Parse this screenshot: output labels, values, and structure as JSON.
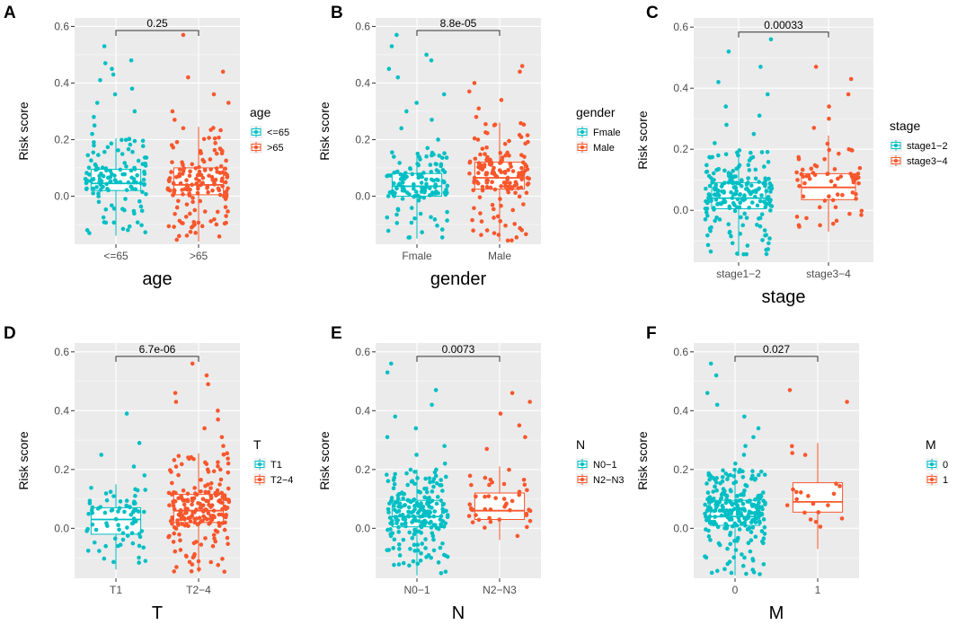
{
  "figure": {
    "colors": {
      "group1": "#00bfc4",
      "group2": "#f8562c",
      "panel_bg": "#ebebeb",
      "grid": "#ffffff"
    }
  },
  "chart_data": [
    {
      "panel": "A",
      "type": "box-jitter",
      "xlabel": "age",
      "ylabel": "Risk score",
      "ylim": [
        -0.17,
        0.63
      ],
      "yticks": [
        0.0,
        0.2,
        0.4,
        0.6
      ],
      "ytick_labels": [
        "0.0",
        "0.2",
        "0.4",
        "0.6"
      ],
      "categories": [
        "<=65",
        ">65"
      ],
      "legend": {
        "title": "age",
        "labels": [
          "<=65",
          ">65"
        ]
      },
      "p_value": "0.25",
      "groups": [
        {
          "name": "<=65",
          "n": 140,
          "min": -0.14,
          "q1": 0.02,
          "median": 0.045,
          "q3": 0.095,
          "max": 0.205,
          "outliers": [
            0.22,
            0.25,
            0.28,
            0.3,
            0.33,
            0.36,
            0.38,
            0.41,
            0.43,
            0.45,
            0.47,
            0.48,
            0.53
          ]
        },
        {
          "name": ">65",
          "n": 160,
          "min": -0.16,
          "q1": 0.005,
          "median": 0.04,
          "q3": 0.1,
          "max": 0.245,
          "outliers": [
            0.27,
            0.3,
            0.33,
            0.36,
            0.42,
            0.44,
            0.57
          ]
        }
      ]
    },
    {
      "panel": "B",
      "type": "box-jitter",
      "xlabel": "gender",
      "ylabel": "Risk score",
      "ylim": [
        -0.17,
        0.63
      ],
      "yticks": [
        0.0,
        0.2,
        0.4,
        0.6
      ],
      "ytick_labels": [
        "0.0",
        "0.2",
        "0.4",
        "0.6"
      ],
      "categories": [
        "Fmale",
        "Male"
      ],
      "legend": {
        "title": "gender",
        "labels": [
          "Fmale",
          "Male"
        ]
      },
      "p_value": "8.8e-05",
      "groups": [
        {
          "name": "Fmale",
          "n": 140,
          "min": -0.15,
          "q1": 0.0,
          "median": 0.035,
          "q3": 0.08,
          "max": 0.155,
          "outliers": [
            0.17,
            0.2,
            0.24,
            0.27,
            0.3,
            0.33,
            0.36,
            0.42,
            0.45,
            0.48,
            0.5,
            0.53,
            0.57
          ]
        },
        {
          "name": "Male",
          "n": 160,
          "min": -0.16,
          "q1": 0.025,
          "median": 0.065,
          "q3": 0.12,
          "max": 0.26,
          "outliers": [
            0.28,
            0.31,
            0.34,
            0.37,
            0.4,
            0.44,
            0.46
          ]
        }
      ]
    },
    {
      "panel": "C",
      "type": "box-jitter",
      "xlabel": "stage",
      "ylabel": "Risk score",
      "ylim": [
        -0.17,
        0.63
      ],
      "yticks": [
        0.0,
        0.2,
        0.4,
        0.6
      ],
      "ytick_labels": [
        "0.0",
        "0.2",
        "0.4",
        "0.6"
      ],
      "categories": [
        "stage1−2",
        "stage3−4"
      ],
      "legend": {
        "title": "stage",
        "labels": [
          "stage1−2",
          "stage3−4"
        ]
      },
      "p_value": "0.00033",
      "groups": [
        {
          "name": "stage1−2",
          "n": 220,
          "min": -0.15,
          "q1": 0.005,
          "median": 0.04,
          "q3": 0.09,
          "max": 0.2,
          "outliers": [
            0.22,
            0.25,
            0.28,
            0.31,
            0.34,
            0.38,
            0.42,
            0.47,
            0.52,
            0.56
          ]
        },
        {
          "name": "stage3−4",
          "n": 70,
          "min": -0.07,
          "q1": 0.035,
          "median": 0.075,
          "q3": 0.12,
          "max": 0.245,
          "outliers": [
            0.27,
            0.3,
            0.34,
            0.38,
            0.43,
            0.47
          ]
        }
      ]
    },
    {
      "panel": "D",
      "type": "box-jitter",
      "xlabel": "T",
      "ylabel": "Risk score",
      "ylim": [
        -0.17,
        0.63
      ],
      "yticks": [
        0.0,
        0.2,
        0.4,
        0.6
      ],
      "ytick_labels": [
        "0.0",
        "0.2",
        "0.4",
        "0.6"
      ],
      "categories": [
        "T1",
        "T2−4"
      ],
      "legend": {
        "title": "T",
        "labels": [
          "T1",
          "T2−4"
        ]
      },
      "p_value": "6.7e-06",
      "groups": [
        {
          "name": "T1",
          "n": 80,
          "min": -0.14,
          "q1": -0.02,
          "median": 0.03,
          "q3": 0.07,
          "max": 0.15,
          "outliers": [
            0.18,
            0.21,
            0.25,
            0.29,
            0.39
          ]
        },
        {
          "name": "T2−4",
          "n": 220,
          "min": -0.15,
          "q1": 0.02,
          "median": 0.06,
          "q3": 0.115,
          "max": 0.255,
          "outliers": [
            0.28,
            0.31,
            0.34,
            0.37,
            0.4,
            0.43,
            0.46,
            0.49,
            0.52,
            0.56
          ]
        }
      ]
    },
    {
      "panel": "E",
      "type": "box-jitter",
      "xlabel": "N",
      "ylabel": "Risk score",
      "ylim": [
        -0.17,
        0.63
      ],
      "yticks": [
        0.0,
        0.2,
        0.4,
        0.6
      ],
      "ytick_labels": [
        "0.0",
        "0.2",
        "0.4",
        "0.6"
      ],
      "categories": [
        "N0−1",
        "N2−N3"
      ],
      "legend": {
        "title": "N",
        "labels": [
          "N0−1",
          "N2−N3"
        ]
      },
      "p_value": "0.0073",
      "groups": [
        {
          "name": "N0−1",
          "n": 230,
          "min": -0.16,
          "q1": 0.005,
          "median": 0.04,
          "q3": 0.095,
          "max": 0.2,
          "outliers": [
            0.22,
            0.25,
            0.28,
            0.31,
            0.34,
            0.38,
            0.42,
            0.47,
            0.53,
            0.56
          ]
        },
        {
          "name": "N2−N3",
          "n": 50,
          "min": -0.04,
          "q1": 0.03,
          "median": 0.06,
          "q3": 0.12,
          "max": 0.21,
          "outliers": [
            0.27,
            0.31,
            0.35,
            0.39,
            0.43,
            0.46
          ]
        }
      ]
    },
    {
      "panel": "F",
      "type": "box-jitter",
      "xlabel": "M",
      "ylabel": "Risk score",
      "ylim": [
        -0.17,
        0.63
      ],
      "yticks": [
        0.0,
        0.2,
        0.4,
        0.6
      ],
      "ytick_labels": [
        "0.0",
        "0.2",
        "0.4",
        "0.6"
      ],
      "categories": [
        "0",
        "1"
      ],
      "legend": {
        "title": "M",
        "labels": [
          "0",
          "1"
        ]
      },
      "p_value": "0.027",
      "groups": [
        {
          "name": "0",
          "n": 260,
          "min": -0.16,
          "q1": 0.01,
          "median": 0.04,
          "q3": 0.095,
          "max": 0.2,
          "outliers": [
            0.22,
            0.25,
            0.28,
            0.31,
            0.34,
            0.38,
            0.42,
            0.46,
            0.52,
            0.56
          ]
        },
        {
          "name": "1",
          "n": 22,
          "min": -0.07,
          "q1": 0.055,
          "median": 0.09,
          "q3": 0.155,
          "max": 0.29,
          "outliers": [
            0.43,
            0.47
          ]
        }
      ]
    }
  ]
}
